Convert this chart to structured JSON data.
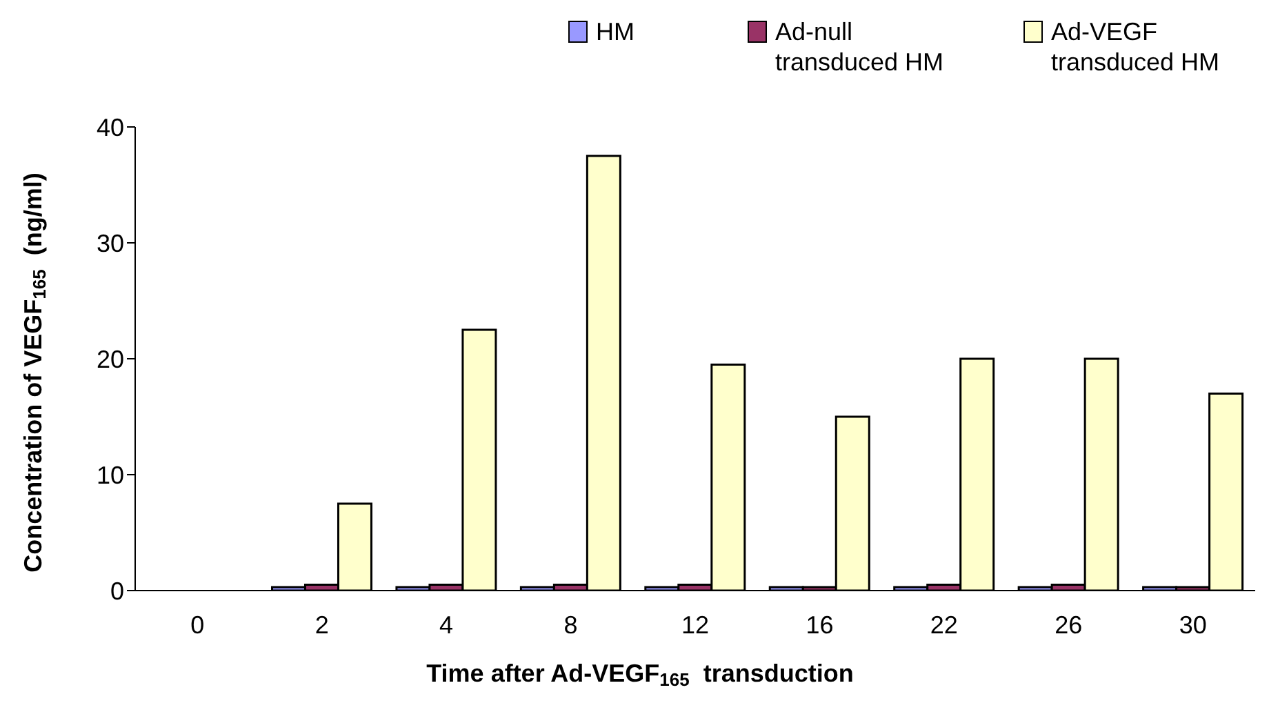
{
  "chart_data": {
    "type": "bar",
    "xlabel": "Time after Ad-VEGF$_{165}$  transduction",
    "ylabel": "Concentration of VEGF$_{165}$  (ng/ml)",
    "categories": [
      "0",
      "2",
      "4",
      "8",
      "12",
      "16",
      "22",
      "26",
      "30"
    ],
    "series": [
      {
        "name": "HM",
        "color": "#9999ff",
        "values": [
          0,
          0.3,
          0.3,
          0.3,
          0.3,
          0.3,
          0.3,
          0.3,
          0.3
        ]
      },
      {
        "name": "Ad-null transduced HM",
        "color": "#993366",
        "values": [
          0,
          0.5,
          0.5,
          0.5,
          0.5,
          0.3,
          0.5,
          0.5,
          0.3
        ]
      },
      {
        "name": "Ad-VEGF transduced HM",
        "color": "#ffffcc",
        "values": [
          0,
          7.5,
          22.5,
          37.5,
          19.5,
          15,
          20,
          20,
          17
        ]
      }
    ],
    "ylim": [
      0,
      40
    ],
    "yticks": [
      0,
      10,
      20,
      30,
      40
    ],
    "grid": false,
    "legend": "top right"
  }
}
